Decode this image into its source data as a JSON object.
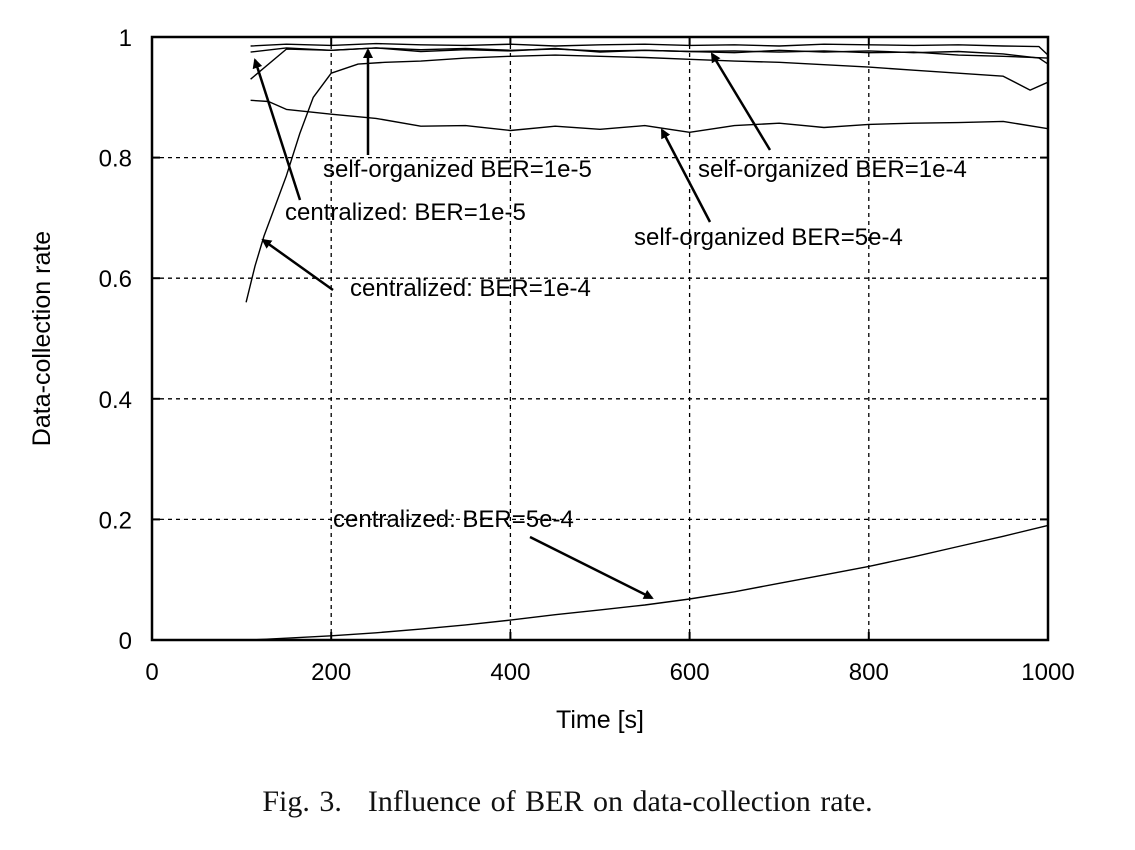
{
  "caption": {
    "figure_number": "Fig. 3.",
    "text": "Influence of BER on data-collection rate."
  },
  "chart_data": {
    "type": "line",
    "title": "",
    "xlabel": "Time [s]",
    "ylabel": "Data-collection rate",
    "xlim": [
      0,
      1000
    ],
    "ylim": [
      0,
      1
    ],
    "xticks": [
      0,
      200,
      400,
      600,
      800,
      1000
    ],
    "xtick_labels": [
      "0",
      "200",
      "400",
      "600",
      "800",
      "1000"
    ],
    "yticks": [
      0,
      0.2,
      0.4,
      0.6,
      0.8,
      1
    ],
    "ytick_labels": [
      "0",
      "0.2",
      "0.4",
      "0.6",
      "0.8",
      "1"
    ],
    "grid": true,
    "legend": "none",
    "series": [
      {
        "name": "self-organized BER=1e-5",
        "x": [
          110,
          150,
          200,
          250,
          300,
          350,
          400,
          450,
          500,
          550,
          600,
          650,
          700,
          750,
          800,
          850,
          900,
          950,
          990,
          1000
        ],
        "y": [
          0.985,
          0.988,
          0.986,
          0.989,
          0.987,
          0.986,
          0.988,
          0.985,
          0.987,
          0.988,
          0.986,
          0.987,
          0.985,
          0.988,
          0.987,
          0.986,
          0.987,
          0.985,
          0.984,
          0.97
        ]
      },
      {
        "name": "self-organized BER=1e-4",
        "x": [
          110,
          150,
          200,
          250,
          300,
          350,
          400,
          450,
          500,
          550,
          600,
          650,
          700,
          750,
          800,
          850,
          900,
          950,
          990,
          1000
        ],
        "y": [
          0.975,
          0.982,
          0.978,
          0.982,
          0.976,
          0.979,
          0.977,
          0.981,
          0.975,
          0.978,
          0.976,
          0.974,
          0.978,
          0.975,
          0.977,
          0.974,
          0.976,
          0.972,
          0.965,
          0.955
        ]
      },
      {
        "name": "self-organized BER=5e-4",
        "x": [
          110,
          130,
          150,
          200,
          250,
          300,
          350,
          400,
          450,
          500,
          550,
          600,
          650,
          700,
          750,
          800,
          850,
          900,
          950,
          1000
        ],
        "y": [
          0.895,
          0.893,
          0.88,
          0.872,
          0.865,
          0.852,
          0.853,
          0.845,
          0.852,
          0.847,
          0.853,
          0.842,
          0.853,
          0.857,
          0.85,
          0.855,
          0.857,
          0.858,
          0.86,
          0.848
        ]
      },
      {
        "name": "centralized: BER=1e-5",
        "x": [
          110,
          150,
          200,
          250,
          300,
          350,
          400,
          450,
          500,
          550,
          600,
          650,
          700,
          750,
          800,
          850,
          900,
          950,
          1000
        ],
        "y": [
          0.93,
          0.98,
          0.978,
          0.982,
          0.979,
          0.981,
          0.978,
          0.98,
          0.977,
          0.978,
          0.976,
          0.977,
          0.975,
          0.977,
          0.974,
          0.975,
          0.97,
          0.968,
          0.965
        ]
      },
      {
        "name": "centralized: BER=1e-4",
        "x": [
          105,
          115,
          125,
          135,
          150,
          165,
          180,
          200,
          230,
          260,
          300,
          350,
          400,
          450,
          500,
          550,
          600,
          650,
          700,
          750,
          800,
          850,
          900,
          950,
          980,
          1000
        ],
        "y": [
          0.56,
          0.62,
          0.67,
          0.71,
          0.77,
          0.84,
          0.9,
          0.94,
          0.955,
          0.958,
          0.96,
          0.965,
          0.968,
          0.97,
          0.968,
          0.966,
          0.963,
          0.96,
          0.958,
          0.954,
          0.95,
          0.945,
          0.94,
          0.935,
          0.912,
          0.925
        ]
      },
      {
        "name": "centralized: BER=5e-4",
        "x": [
          110,
          150,
          200,
          250,
          300,
          350,
          400,
          450,
          500,
          550,
          600,
          650,
          700,
          750,
          800,
          850,
          900,
          950,
          1000
        ],
        "y": [
          0.0,
          0.003,
          0.007,
          0.012,
          0.018,
          0.025,
          0.033,
          0.042,
          0.05,
          0.058,
          0.068,
          0.08,
          0.094,
          0.108,
          0.122,
          0.138,
          0.155,
          0.172,
          0.19
        ]
      }
    ],
    "annotations": [
      {
        "text": "self-organized  BER=1e-5"
      },
      {
        "text": "self-organized  BER=1e-4"
      },
      {
        "text": "centralized: BER=1e-5"
      },
      {
        "text": "self-organized  BER=5e-4"
      },
      {
        "text": "centralized: BER=1e-4"
      },
      {
        "text": "centralized: BER=5e-4"
      }
    ]
  }
}
